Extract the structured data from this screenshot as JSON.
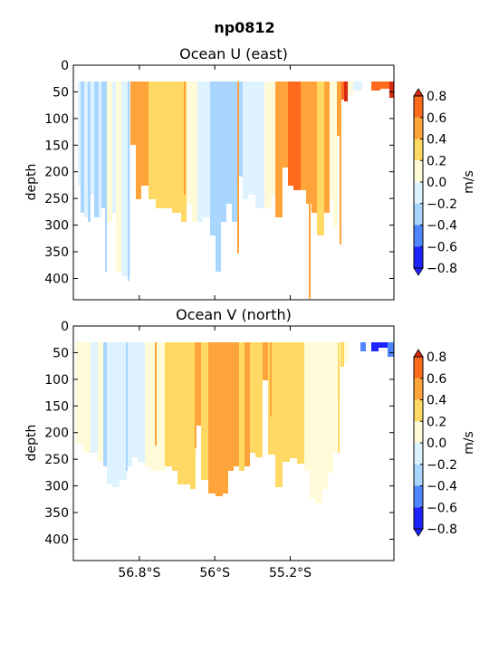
{
  "figure": {
    "title": "np0812"
  },
  "colorbar": {
    "label": "m/s",
    "levels": [
      -0.8,
      -0.6,
      -0.4,
      -0.2,
      0.0,
      0.2,
      0.4,
      0.6,
      0.8
    ],
    "tick_labels": [
      "0.8",
      "0.6",
      "0.4",
      "0.2",
      "0.0",
      "−0.2",
      "−0.4",
      "−0.6",
      "−0.8"
    ],
    "colors": [
      "#1e24ff",
      "#4f86ff",
      "#a9d6ff",
      "#dff2ff",
      "#fffbd9",
      "#ffd964",
      "#ffa43b",
      "#ff6a1c",
      "#d92a10"
    ]
  },
  "chart_data": [
    {
      "type": "heatmap",
      "title": "Ocean U (east)",
      "ylabel": "depth",
      "ylim": [
        440,
        0
      ],
      "yticks": [
        "0",
        "50",
        "100",
        "150",
        "200",
        "250",
        "300",
        "350",
        "400"
      ],
      "xlim": [
        57.5,
        54.1
      ],
      "xticks": [],
      "x_sample_deg_S": [
        57.4,
        57.0,
        56.6,
        56.2,
        55.8,
        55.4,
        55.0,
        54.6,
        54.2
      ],
      "depth_sample": [
        50,
        100,
        200,
        280
      ],
      "u_sample_m_per_s": [
        [
          -0.3,
          0.1,
          0.4,
          0.3,
          -0.3,
          0.1,
          0.6,
          0.5,
          0.0
        ],
        [
          -0.3,
          0.1,
          0.4,
          0.3,
          -0.3,
          0.1,
          0.6,
          0.5,
          0.0
        ],
        [
          -0.3,
          0.1,
          0.3,
          0.3,
          -0.3,
          0.1,
          0.5,
          0.3,
          null
        ],
        [
          null,
          0.1,
          null,
          null,
          -0.3,
          null,
          0.3,
          0.1,
          null
        ]
      ]
    },
    {
      "type": "heatmap",
      "title": "Ocean V (north)",
      "ylabel": "depth",
      "ylim": [
        440,
        0
      ],
      "yticks": [
        "0",
        "50",
        "100",
        "150",
        "200",
        "250",
        "300",
        "350",
        "400"
      ],
      "xlim": [
        57.5,
        54.1
      ],
      "xticks": [
        "56.8°S",
        "56°S",
        "55.2°S"
      ],
      "xtick_values": [
        56.8,
        56.0,
        55.2
      ],
      "x_sample_deg_S": [
        57.4,
        57.0,
        56.6,
        56.2,
        55.8,
        55.4,
        55.0,
        54.6,
        54.2
      ],
      "depth_sample": [
        50,
        100,
        200,
        280
      ],
      "v_sample_m_per_s": [
        [
          0.1,
          -0.1,
          -0.1,
          0.3,
          0.4,
          0.3,
          0.3,
          0.1,
          -0.5
        ],
        [
          0.1,
          -0.1,
          -0.1,
          0.3,
          0.4,
          0.3,
          0.3,
          0.1,
          null
        ],
        [
          null,
          -0.1,
          0.1,
          0.3,
          0.4,
          0.3,
          0.3,
          0.1,
          null
        ],
        [
          null,
          null,
          null,
          0.1,
          0.4,
          null,
          null,
          0.1,
          null
        ]
      ]
    }
  ]
}
